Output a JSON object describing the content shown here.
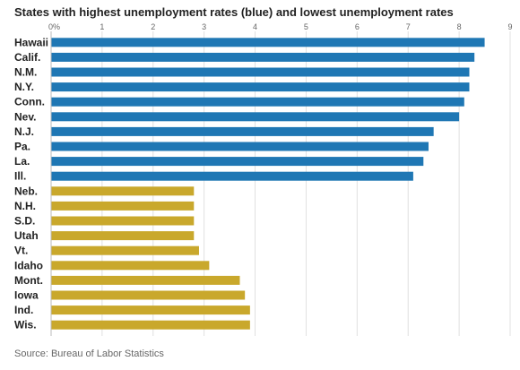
{
  "chart_data": {
    "type": "bar",
    "orientation": "horizontal",
    "title": "States with highest unemployment rates (blue) and lowest unemployment rates",
    "source": "Source: Bureau of Labor Statistics",
    "xlim": [
      0,
      9
    ],
    "x_ticks": [
      "0%",
      "1",
      "2",
      "3",
      "4",
      "5",
      "6",
      "7",
      "8",
      "9"
    ],
    "grid": true,
    "categories": [
      "Hawaii",
      "Calif.",
      "N.M.",
      "N.Y.",
      "Conn.",
      "Nev.",
      "N.J.",
      "Pa.",
      "La.",
      "Ill.",
      "Neb.",
      "N.H.",
      "S.D.",
      "Utah",
      "Vt.",
      "Idaho",
      "Mont.",
      "Iowa",
      "Ind.",
      "Wis."
    ],
    "values": [
      8.5,
      8.3,
      8.2,
      8.2,
      8.1,
      8.0,
      7.5,
      7.4,
      7.3,
      7.1,
      2.8,
      2.8,
      2.8,
      2.8,
      2.9,
      3.1,
      3.7,
      3.8,
      3.9,
      3.9
    ],
    "groups": [
      "highest",
      "highest",
      "highest",
      "highest",
      "highest",
      "highest",
      "highest",
      "highest",
      "highest",
      "highest",
      "lowest",
      "lowest",
      "lowest",
      "lowest",
      "lowest",
      "lowest",
      "lowest",
      "lowest",
      "lowest",
      "lowest"
    ],
    "colors": {
      "highest": "#1f77b4",
      "lowest": "#c9a82c"
    }
  }
}
